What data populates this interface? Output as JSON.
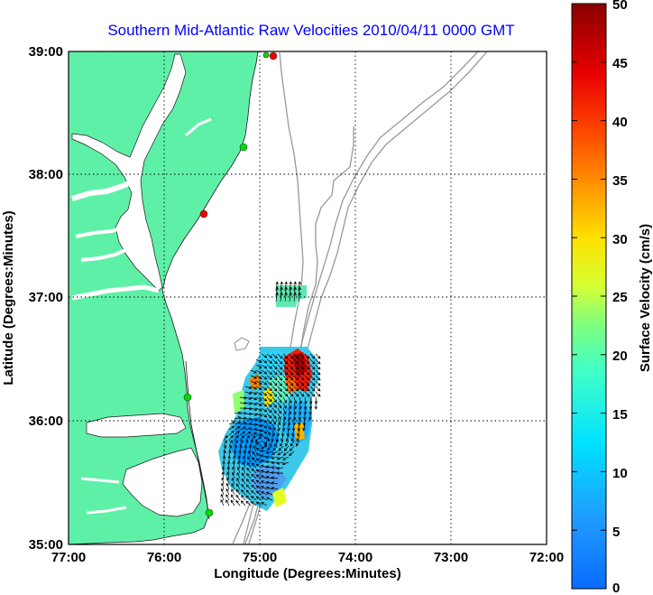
{
  "title": "Southern Mid-Atlantic Raw Velocities 2010/04/11 0000 GMT",
  "xlabel": "Longitude (Degrees:Minutes)",
  "ylabel": "Latitude (Degrees:Minutes)",
  "x_ticks": [
    "77:00",
    "76:00",
    "75:00",
    "74:00",
    "73:00",
    "72:00"
  ],
  "y_ticks": [
    "39:00",
    "38:00",
    "37:00",
    "36:00",
    "35:00"
  ],
  "colorbar": {
    "label": "Surface Velocity (cm/s)",
    "ticks": [
      "50",
      "45",
      "40",
      "35",
      "30",
      "25",
      "20",
      "15",
      "10",
      "5",
      "0"
    ],
    "range": [
      0,
      50
    ]
  },
  "colors": {
    "land": "#5ff0a8",
    "water": "#ffffff",
    "bathymetry": "#999999",
    "grid": "#000000",
    "title": "#0000ff",
    "station_green": "#00dd00",
    "station_red": "#ee0000"
  }
}
